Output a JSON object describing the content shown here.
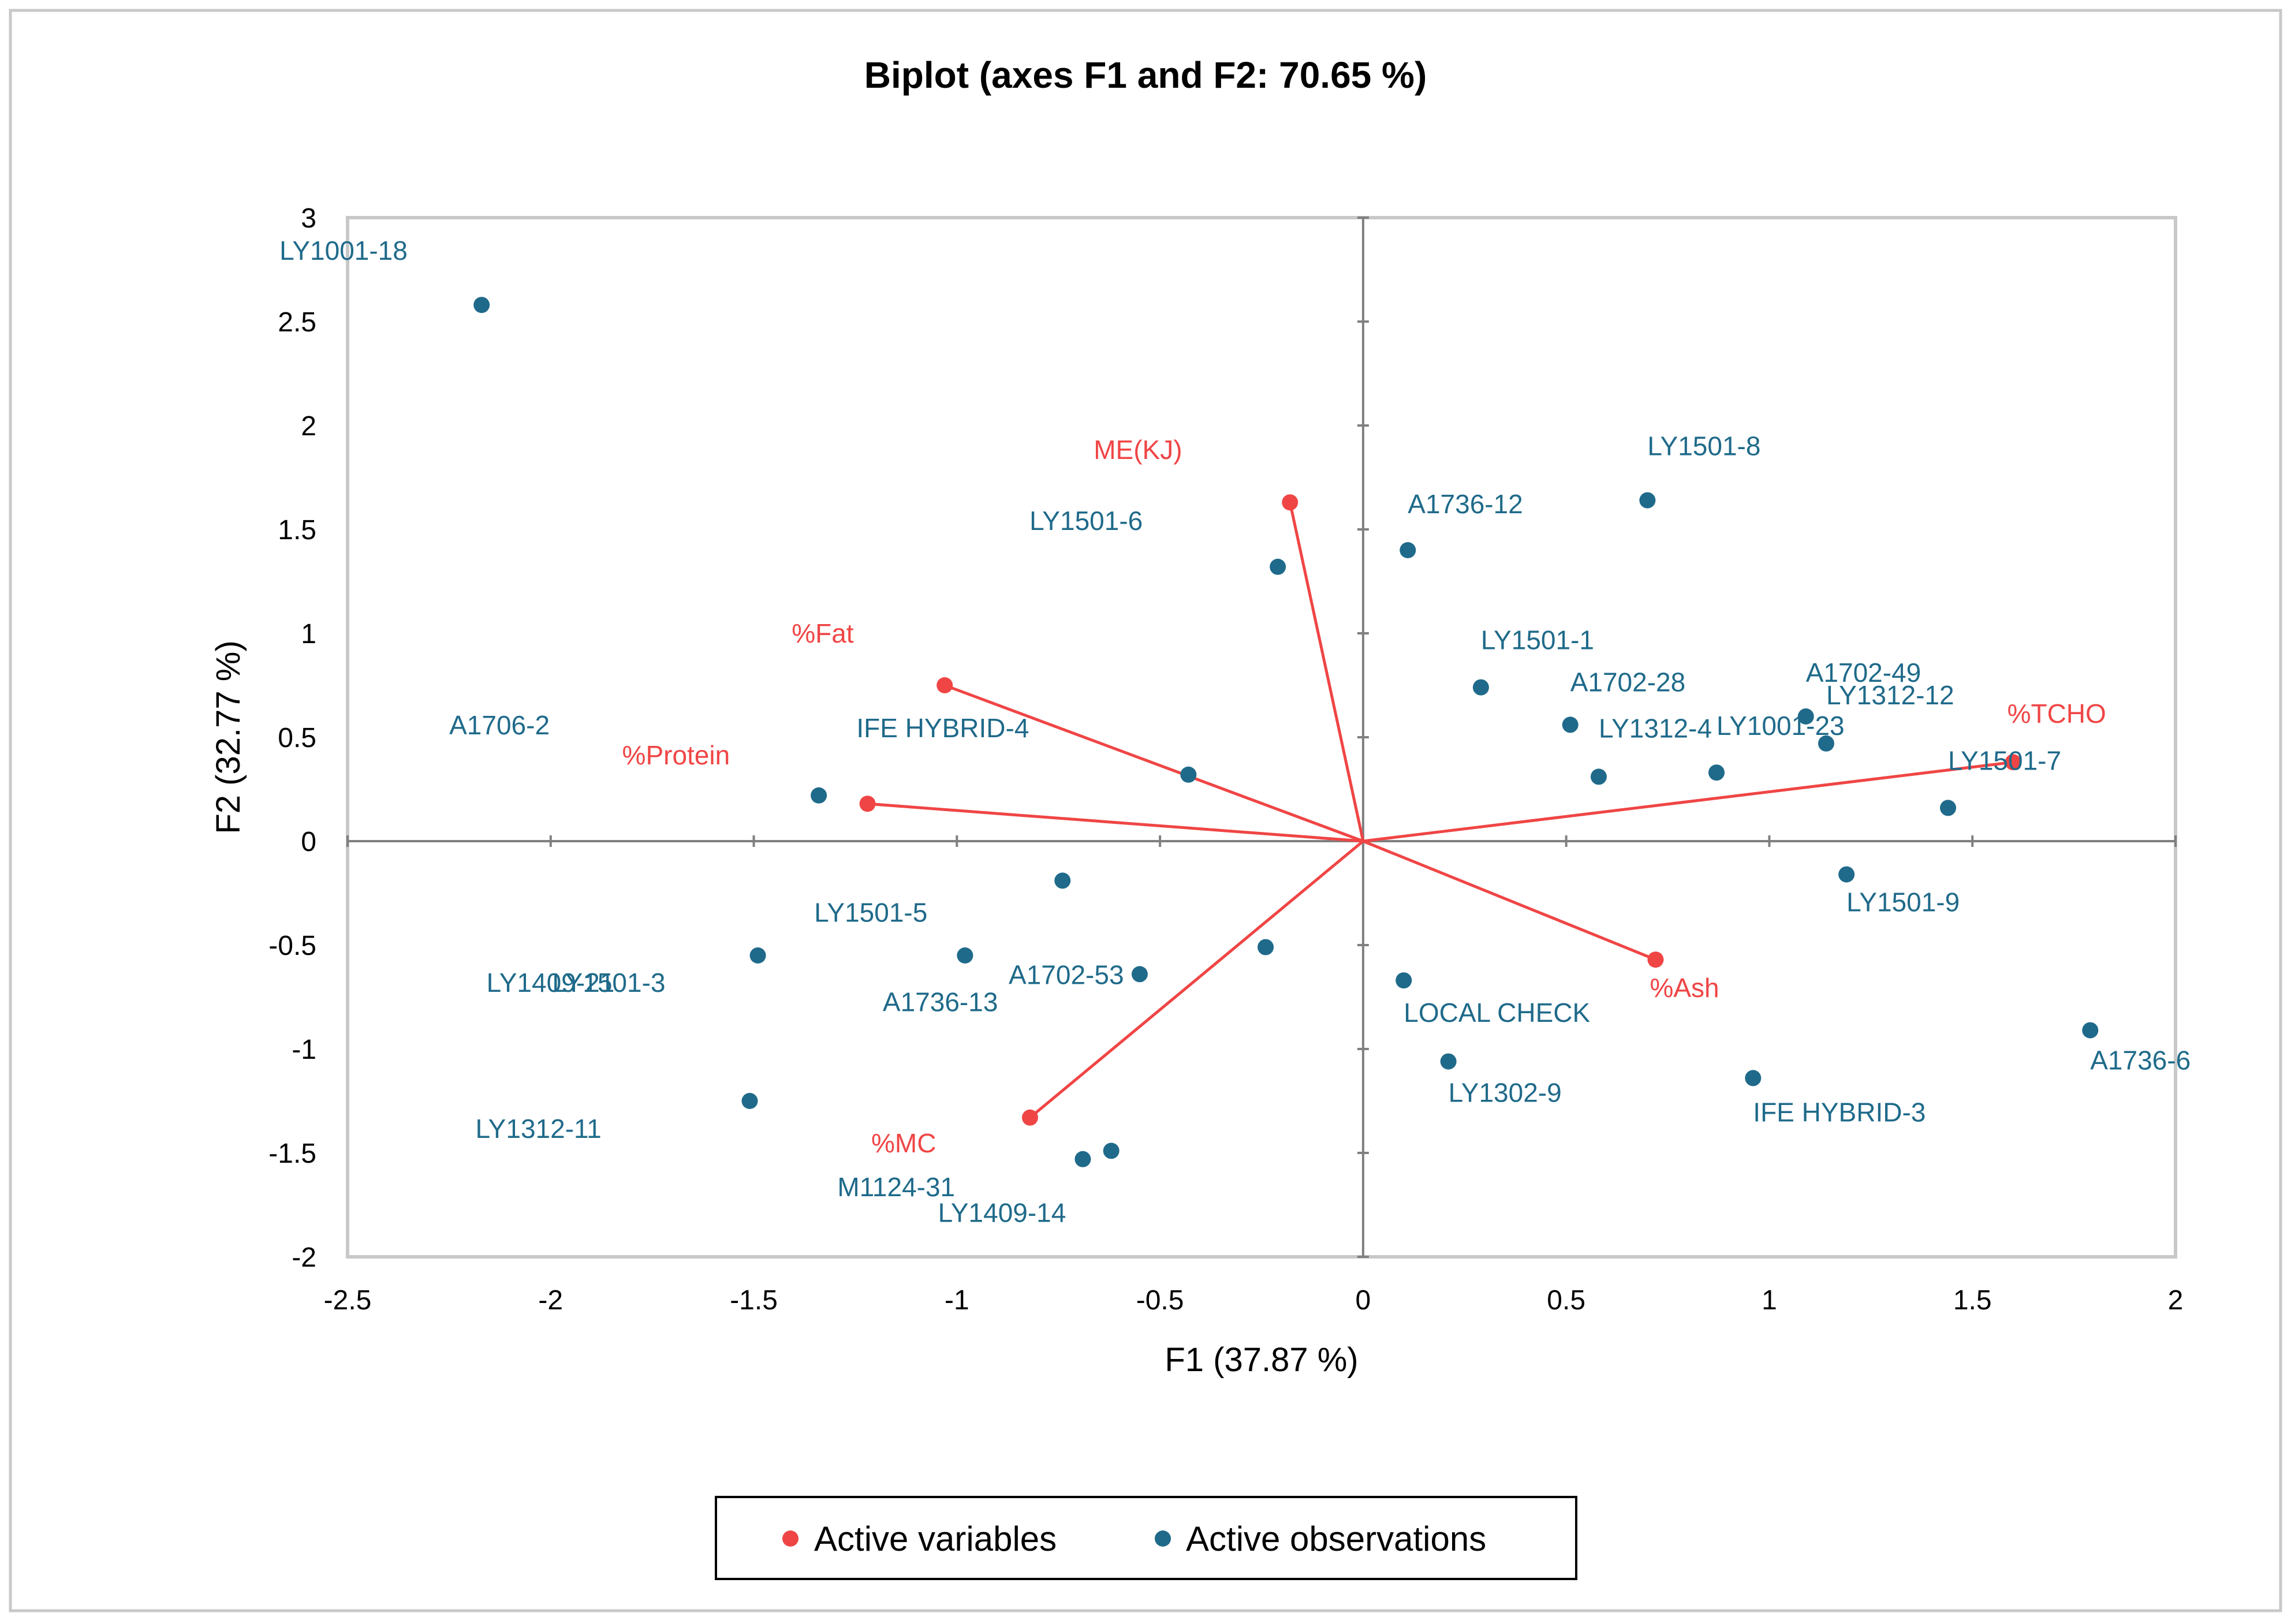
{
  "chart_data": {
    "type": "scatter",
    "title": "Biplot (axes F1 and F2: 70.65 %)",
    "xlabel": "F1 (37.87 %)",
    "ylabel": "F2 (32.77 %)",
    "xlim": [
      -2.5,
      2
    ],
    "ylim": [
      -2,
      3
    ],
    "x_ticks": [
      "-2.5",
      "-2",
      "-1.5",
      "-1",
      "-0.5",
      "0",
      "0.5",
      "1",
      "1.5",
      "2"
    ],
    "y_ticks": [
      "3",
      "2.5",
      "2",
      "1.5",
      "1",
      "0.5",
      "0",
      "-0.5",
      "-1",
      "-1.5",
      "-2"
    ],
    "colors": {
      "variables": "#f04545",
      "observations": "#1f6a8a"
    },
    "legend": {
      "position": "bottom-center",
      "items": [
        {
          "label": "Active variables",
          "color": "#f04545"
        },
        {
          "label": "Active observations",
          "color": "#1f6a8a"
        }
      ]
    },
    "variables": [
      {
        "name": "ME(KJ)",
        "x": -0.18,
        "y": 1.63
      },
      {
        "name": "%Fat",
        "x": -1.03,
        "y": 0.75
      },
      {
        "name": "%Protein",
        "x": -1.22,
        "y": 0.18
      },
      {
        "name": "%TCHO",
        "x": 1.6,
        "y": 0.38
      },
      {
        "name": "%Ash",
        "x": 0.72,
        "y": -0.57
      },
      {
        "name": "%MC",
        "x": -0.82,
        "y": -1.33
      }
    ],
    "observations": [
      {
        "name": "LY1001-18",
        "x": -2.17,
        "y": 2.58
      },
      {
        "name": "LY1501-6",
        "x": -0.21,
        "y": 1.32
      },
      {
        "name": "A1736-12",
        "x": 0.11,
        "y": 1.4
      },
      {
        "name": "LY1501-8",
        "x": 0.7,
        "y": 1.64
      },
      {
        "name": "LY1501-1",
        "x": 0.29,
        "y": 0.74
      },
      {
        "name": "A1702-28",
        "x": 0.51,
        "y": 0.56
      },
      {
        "name": "LY1312-4",
        "x": 0.58,
        "y": 0.31
      },
      {
        "name": "LY1001-23",
        "x": 0.87,
        "y": 0.33
      },
      {
        "name": "A1702-49",
        "x": 1.09,
        "y": 0.6
      },
      {
        "name": "LY1312-12",
        "x": 1.14,
        "y": 0.47
      },
      {
        "name": "LY1501-7",
        "x": 1.44,
        "y": 0.16
      },
      {
        "name": "A1706-2",
        "x": -1.34,
        "y": 0.22
      },
      {
        "name": "IFE HYBRID-4",
        "x": -0.43,
        "y": 0.32
      },
      {
        "name": "LY1501-9",
        "x": 1.19,
        "y": -0.16
      },
      {
        "name": "LY1501-5",
        "x": -0.74,
        "y": -0.19
      },
      {
        "name": "LY1409-21",
        "x": -1.49,
        "y": -0.55
      },
      {
        "name": "LY1501-3",
        "x": -0.98,
        "y": -0.55
      },
      {
        "name": "A1736-13",
        "x": -0.55,
        "y": -0.64
      },
      {
        "name": "A1702-53",
        "x": -0.24,
        "y": -0.51
      },
      {
        "name": "LOCAL CHECK",
        "x": 0.1,
        "y": -0.67
      },
      {
        "name": "LY1302-9",
        "x": 0.21,
        "y": -1.06
      },
      {
        "name": "IFE HYBRID-3",
        "x": 0.96,
        "y": -1.14
      },
      {
        "name": "A1736-6",
        "x": 1.79,
        "y": -0.91
      },
      {
        "name": "LY1312-11",
        "x": -1.51,
        "y": -1.25
      },
      {
        "name": "M1124-31",
        "x": -0.69,
        "y": -1.53
      },
      {
        "name": "LY1409-14",
        "x": -0.62,
        "y": -1.49
      }
    ]
  }
}
